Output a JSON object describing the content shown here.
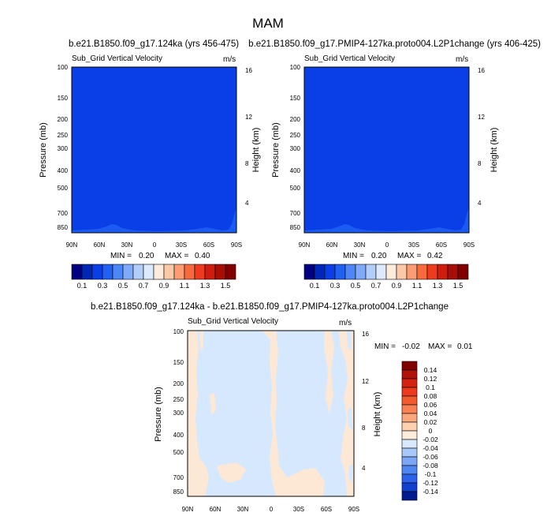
{
  "figure": {
    "title": "MAM"
  },
  "colors": {
    "base_fill": "#0a3ee6",
    "base_bump": "#1a5cf2",
    "diff_neg": "#d6e8fd",
    "diff_pos": "#fde8d6"
  },
  "chart_data": [
    {
      "type": "heatmap",
      "title": "b.e21.B1850.f09_g17.124ka (yrs 456-475)",
      "subtitle": "Sub_Grid Vertical Velocity",
      "units": "m/s",
      "ylabel": "Pressure (mb)",
      "ylabel_right": "Height (km)",
      "x_ticks": [
        "90N",
        "60N",
        "30N",
        "0",
        "30S",
        "60S",
        "90S"
      ],
      "y_ticks": [
        "100",
        "150",
        "200",
        "250",
        "300",
        "400",
        "500",
        "700",
        "850"
      ],
      "y_right_ticks": [
        "16",
        "12",
        "8",
        "4"
      ],
      "stats": {
        "min_label": "MIN =",
        "min": "0.20",
        "max_label": "MAX =",
        "max": "0.40"
      },
      "colorbar": {
        "labels": [
          "0.1",
          "0.3",
          "0.5",
          "0.7",
          "0.9",
          "1.1",
          "1.3",
          "1.5"
        ],
        "colors": [
          "#000080",
          "#0027b8",
          "#0a3ee6",
          "#2060f2",
          "#4d86f6",
          "#7fa9f9",
          "#b3cdfb",
          "#ddeafd",
          "#fdebdc",
          "#fcc9a8",
          "#fb9c72",
          "#f76a3e",
          "#ef3b1d",
          "#d01c0c",
          "#a80e06",
          "#800000"
        ]
      }
    },
    {
      "type": "heatmap",
      "title": "b.e21.B1850.f09_g17.PMIP4-127ka.proto004.L2P1change (yrs 406-425)",
      "subtitle": "Sub_Grid Vertical Velocity",
      "units": "m/s",
      "ylabel": "Pressure (mb)",
      "ylabel_right": "Height (km)",
      "x_ticks": [
        "90N",
        "60N",
        "30N",
        "0",
        "30S",
        "60S",
        "90S"
      ],
      "y_ticks": [
        "100",
        "150",
        "200",
        "250",
        "300",
        "400",
        "500",
        "700",
        "850"
      ],
      "y_right_ticks": [
        "16",
        "12",
        "8",
        "4"
      ],
      "stats": {
        "min_label": "MIN =",
        "min": "0.20",
        "max_label": "MAX =",
        "max": "0.42"
      },
      "colorbar": {
        "labels": [
          "0.1",
          "0.3",
          "0.5",
          "0.7",
          "0.9",
          "1.1",
          "1.3",
          "1.5"
        ],
        "colors": [
          "#000080",
          "#0027b8",
          "#0a3ee6",
          "#2060f2",
          "#4d86f6",
          "#7fa9f9",
          "#b3cdfb",
          "#ddeafd",
          "#fdebdc",
          "#fcc9a8",
          "#fb9c72",
          "#f76a3e",
          "#ef3b1d",
          "#d01c0c",
          "#a80e06",
          "#800000"
        ]
      }
    },
    {
      "type": "heatmap",
      "title": "b.e21.B1850.f09_g17.124ka - b.e21.B1850.f09_g17.PMIP4-127ka.proto004.L2P1change",
      "subtitle": "Sub_Grid Vertical Velocity",
      "units": "m/s",
      "ylabel": "Pressure (mb)",
      "ylabel_right": "Height (km)",
      "x_ticks": [
        "90N",
        "60N",
        "30N",
        "0",
        "30S",
        "60S",
        "90S"
      ],
      "y_ticks": [
        "100",
        "150",
        "200",
        "250",
        "300",
        "400",
        "500",
        "700",
        "850"
      ],
      "y_right_ticks": [
        "16",
        "12",
        "8",
        "4"
      ],
      "stats": {
        "min_label": "MIN =",
        "min": "-0.02",
        "max_label": "MAX =",
        "max": "0.01"
      },
      "colorbar": {
        "labels": [
          "0.14",
          "0.12",
          "0.1",
          "0.08",
          "0.06",
          "0.04",
          "0.02",
          "0",
          "-0.02",
          "-0.04",
          "-0.06",
          "-0.08",
          "-0.1",
          "-0.12",
          "-0.14"
        ],
        "colors": [
          "#800000",
          "#b01208",
          "#d42212",
          "#ec3a1e",
          "#f45a30",
          "#f88052",
          "#fba77c",
          "#fdd0b0",
          "#fdebdc",
          "#d8e8fd",
          "#a8c8fa",
          "#7ca6f6",
          "#4f86f2",
          "#2a62ea",
          "#1040d0",
          "#001a90"
        ]
      }
    }
  ]
}
